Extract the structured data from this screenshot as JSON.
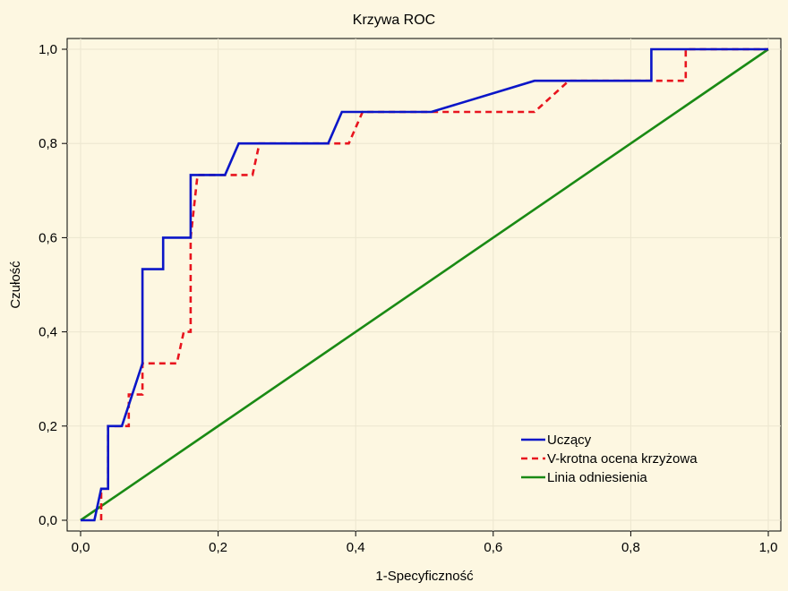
{
  "chart_data": {
    "type": "line",
    "title": "Krzywa ROC",
    "xlabel": "1-Specyficzność",
    "ylabel": "Czułość",
    "xlim": [
      0,
      1
    ],
    "ylim": [
      0,
      1
    ],
    "xticks": [
      "0,0",
      "0,2",
      "0,4",
      "0,6",
      "0,8",
      "1,0"
    ],
    "yticks": [
      "0,0",
      "0,2",
      "0,4",
      "0,6",
      "0,8",
      "1,0"
    ],
    "grid": true,
    "legend_position": "bottom-right",
    "series": [
      {
        "name": "Uczący",
        "color": "#0a16c8",
        "style": "solid",
        "x": [
          0,
          0.02,
          0.03,
          0.04,
          0.04,
          0.06,
          0.06,
          0.09,
          0.09,
          0.12,
          0.12,
          0.16,
          0.16,
          0.18,
          0.18,
          0.21,
          0.23,
          0.23,
          0.36,
          0.38,
          0.38,
          0.51,
          0.66,
          0.82,
          0.83,
          0.83,
          1.0
        ],
        "y": [
          0,
          0,
          0.067,
          0.067,
          0.2,
          0.2,
          0.2,
          0.333,
          0.533,
          0.533,
          0.6,
          0.6,
          0.733,
          0.733,
          0.733,
          0.733,
          0.8,
          0.8,
          0.8,
          0.867,
          0.867,
          0.867,
          0.933,
          0.933,
          0.933,
          1.0,
          1.0
        ]
      },
      {
        "name": "V-krotna ocena krzyżowa",
        "color": "#e8141e",
        "style": "dashed",
        "x": [
          0.03,
          0.03,
          0.04,
          0.04,
          0.07,
          0.07,
          0.09,
          0.09,
          0.14,
          0.15,
          0.16,
          0.16,
          0.17,
          0.25,
          0.26,
          0.39,
          0.41,
          0.64,
          0.66,
          0.71,
          0.87,
          0.88,
          0.88,
          1.0
        ],
        "y": [
          0,
          0.067,
          0.067,
          0.2,
          0.2,
          0.267,
          0.267,
          0.333,
          0.333,
          0.4,
          0.4,
          0.6,
          0.733,
          0.733,
          0.8,
          0.8,
          0.867,
          0.867,
          0.867,
          0.933,
          0.933,
          0.933,
          1.0,
          1.0
        ]
      },
      {
        "name": "Linia odniesienia",
        "color": "#1a8a14",
        "style": "solid",
        "x": [
          0,
          1
        ],
        "y": [
          0,
          1
        ]
      }
    ]
  }
}
